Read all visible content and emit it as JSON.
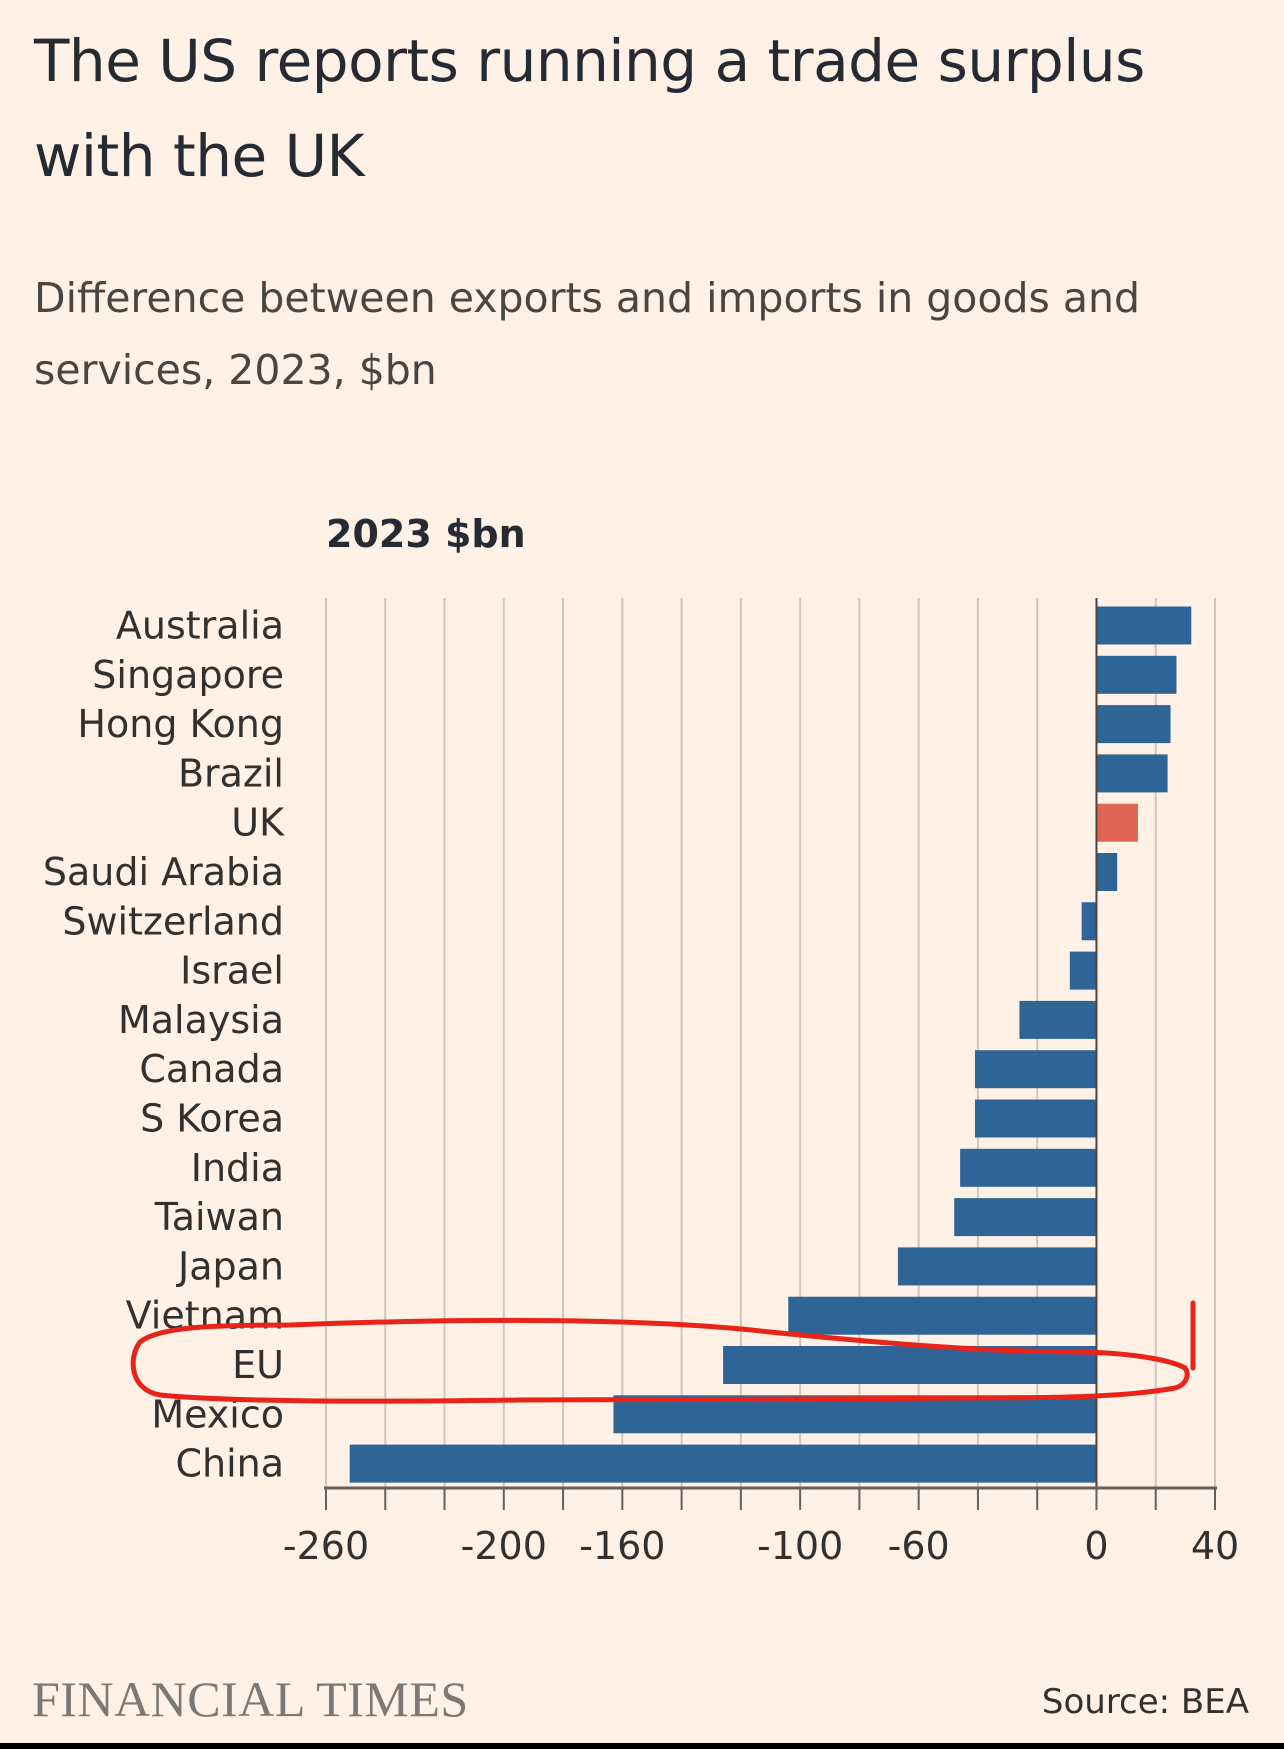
{
  "title": "The US reports running a trade surplus with the UK",
  "subtitle": "Difference between exports and imports in goods and services, 2023, $bn",
  "footer": {
    "brand": "FINANCIAL TIMES",
    "source": "Source: BEA"
  },
  "colors": {
    "background": "#fff1e5",
    "bar": "#2f6496",
    "highlight_bar": "#e06555",
    "annotation": "#e8241a"
  },
  "chart_data": {
    "type": "bar",
    "orientation": "horizontal",
    "title": "2023 $bn",
    "categories": [
      "Australia",
      "Singapore",
      "Hong Kong",
      "Brazil",
      "UK",
      "Saudi Arabia",
      "Switzerland",
      "Israel",
      "Malaysia",
      "Canada",
      "S Korea",
      "India",
      "Taiwan",
      "Japan",
      "Vietnam",
      "EU",
      "Mexico",
      "China"
    ],
    "values": [
      32,
      27,
      25,
      24,
      14,
      7,
      -5,
      -9,
      -26,
      -41,
      -41,
      -46,
      -48,
      -67,
      -104,
      -126,
      -163,
      -252
    ],
    "highlight": "UK",
    "xlim": [
      -260,
      40
    ],
    "x_tick_labels": [
      -260,
      -200,
      -160,
      -100,
      -60,
      0,
      40
    ],
    "grid": "vertical",
    "annotation": "hand-drawn red loop circling Vietnam, EU and Mexico"
  }
}
